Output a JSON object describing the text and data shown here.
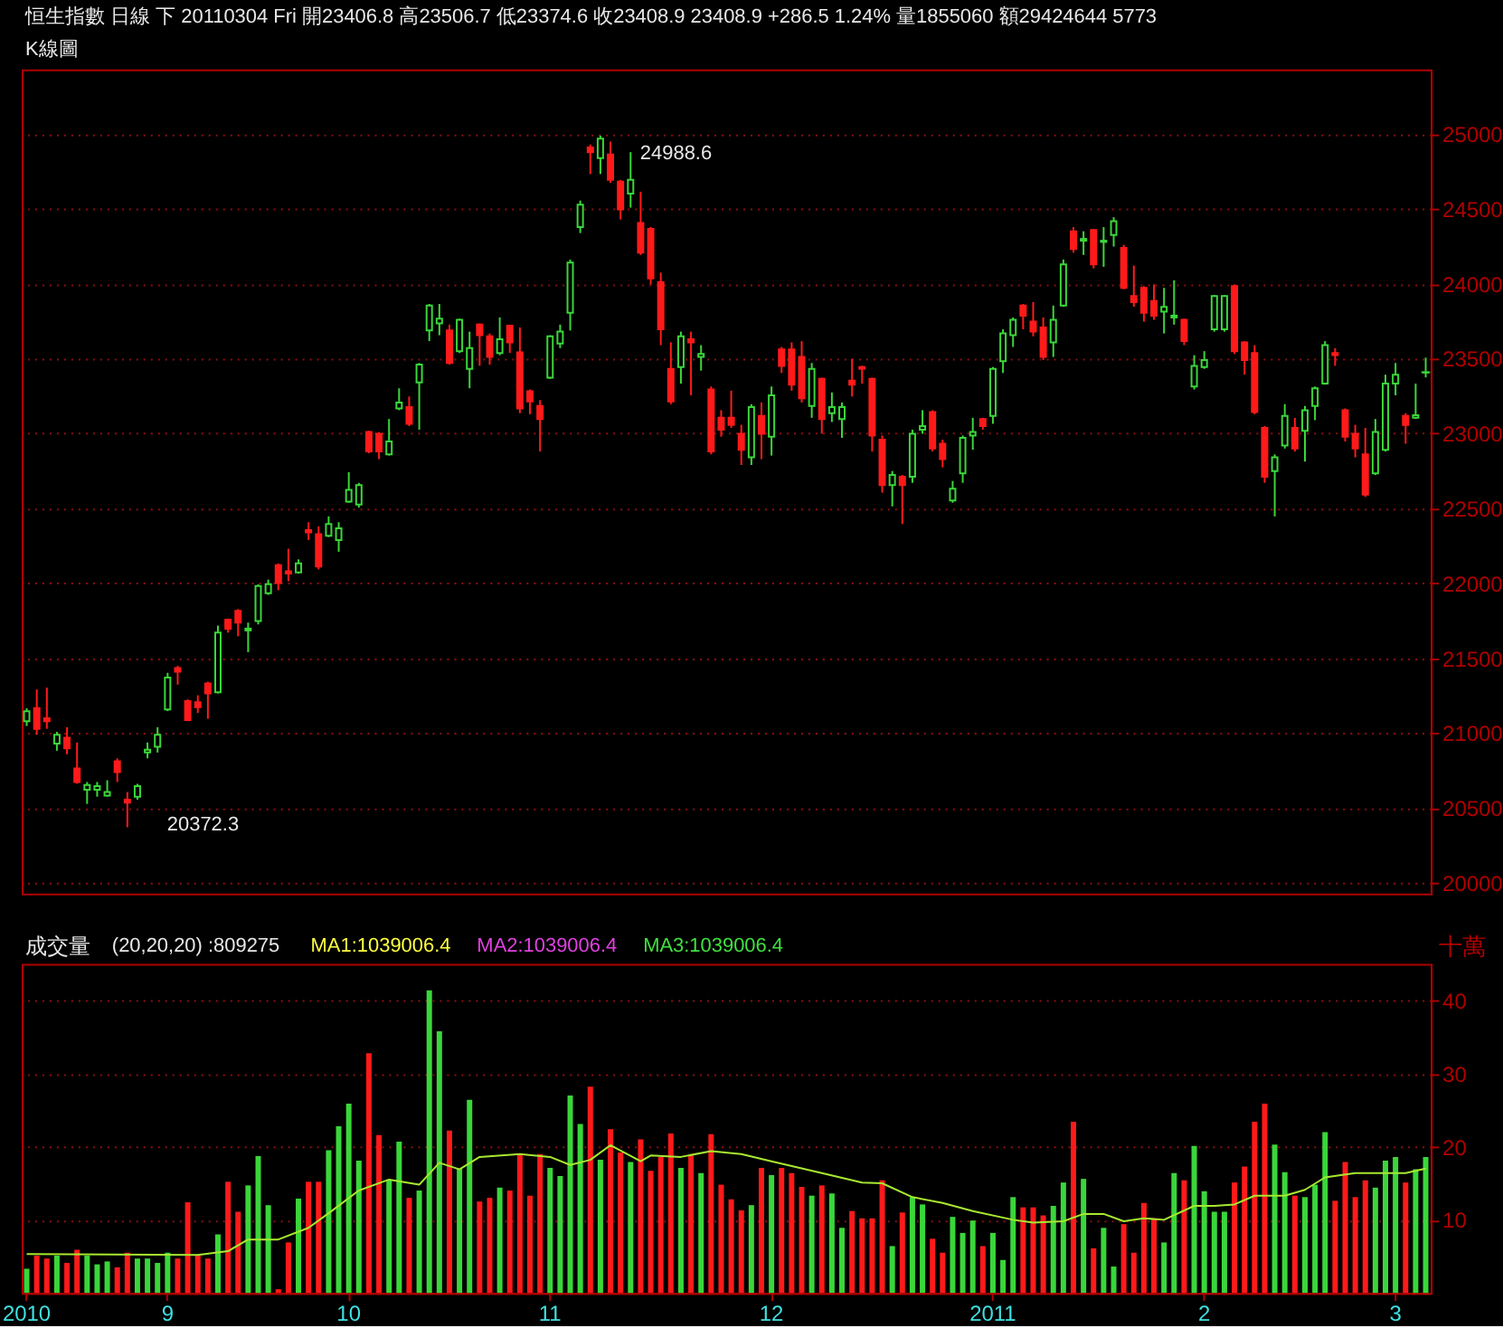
{
  "chart_data": [
    {
      "type": "candlestick",
      "title": "恒生指數 日線 下 20110304 Fri 開23406.8 高23506.7 低23374.6 收23408.9 23408.9 +286.5 1.24% 量1855060 額29424644 5773",
      "subtitle": "K線圖",
      "categories": [
        "2010",
        null,
        null,
        null,
        null,
        null,
        null,
        null,
        null,
        null,
        null,
        null,
        null,
        null,
        "9",
        null,
        null,
        null,
        null,
        null,
        null,
        null,
        null,
        null,
        null,
        null,
        null,
        null,
        null,
        null,
        null,
        null,
        "10",
        null,
        null,
        null,
        null,
        null,
        null,
        null,
        null,
        null,
        null,
        null,
        null,
        null,
        null,
        null,
        null,
        null,
        null,
        null,
        "11",
        null,
        null,
        null,
        null,
        null,
        null,
        null,
        null,
        null,
        null,
        null,
        null,
        null,
        null,
        null,
        null,
        null,
        null,
        null,
        null,
        null,
        "12",
        null,
        null,
        null,
        null,
        null,
        null,
        null,
        null,
        null,
        null,
        null,
        null,
        null,
        null,
        null,
        null,
        null,
        null,
        null,
        null,
        null,
        "2011",
        null,
        null,
        null,
        null,
        null,
        null,
        null,
        null,
        null,
        null,
        null,
        null,
        null,
        null,
        null,
        null,
        null,
        null,
        null,
        null,
        "2",
        null,
        null,
        null,
        null,
        null,
        null,
        null,
        null,
        null,
        null,
        null,
        null,
        null,
        null,
        null,
        null,
        null,
        null,
        "3",
        null,
        null,
        null
      ],
      "ohlc": [
        [
          21080,
          21167,
          21048,
          21147
        ],
        [
          21167,
          21292,
          20989,
          21029
        ],
        [
          21099,
          21304,
          21029,
          21080
        ],
        [
          20930,
          21009,
          20883,
          20989
        ],
        [
          20969,
          21040,
          20859,
          20898
        ],
        [
          20765,
          20938,
          20662,
          20674
        ],
        [
          20623,
          20674,
          20528,
          20654
        ],
        [
          20623,
          20674,
          20576,
          20646
        ],
        [
          20583,
          20686,
          20576,
          20607
        ],
        [
          20812,
          20832,
          20674,
          20741
        ],
        [
          20556,
          20607,
          20372.3,
          20536
        ],
        [
          20576,
          20662,
          20556,
          20646
        ],
        [
          20871,
          20938,
          20832,
          20890
        ],
        [
          20910,
          21040,
          20871,
          20989
        ],
        [
          21159,
          21403,
          21147,
          21371
        ],
        [
          21434,
          21450,
          21324,
          21411
        ],
        [
          21214,
          21226,
          21080,
          21088
        ],
        [
          21206,
          21253,
          21135,
          21174
        ],
        [
          21332,
          21344,
          21096,
          21265
        ],
        [
          21273,
          21718,
          21265,
          21671
        ],
        [
          21757,
          21765,
          21671,
          21698
        ],
        [
          21816,
          21828,
          21647,
          21738
        ],
        [
          21686,
          21738,
          21541,
          21698
        ],
        [
          21749,
          21994,
          21726,
          21982
        ],
        [
          21935,
          22025,
          21923,
          21994
        ],
        [
          22121,
          22133,
          21954,
          22002
        ],
        [
          22081,
          22231,
          22014,
          22065
        ],
        [
          22073,
          22160,
          22065,
          22133
        ],
        [
          22356,
          22408,
          22289,
          22341
        ],
        [
          22329,
          22380,
          22093,
          22112
        ],
        [
          22317,
          22447,
          22309,
          22396
        ],
        [
          22289,
          22408,
          22211,
          22368
        ],
        [
          22545,
          22742,
          22538,
          22624
        ],
        [
          22526,
          22671,
          22506,
          22656
        ],
        [
          23010,
          23018,
          22869,
          22880
        ],
        [
          22999,
          23010,
          22829,
          22880
        ],
        [
          22861,
          23097,
          22853,
          22947
        ],
        [
          23168,
          23302,
          23156,
          23207
        ],
        [
          23176,
          23247,
          23050,
          23065
        ],
        [
          23341,
          23471,
          23026,
          23460
        ],
        [
          23688,
          23865,
          23617,
          23854
        ],
        [
          23735,
          23865,
          23656,
          23767
        ],
        [
          23688,
          23727,
          23460,
          23471
        ],
        [
          23550,
          23767,
          23538,
          23759
        ],
        [
          23432,
          23680,
          23302,
          23570
        ],
        [
          23727,
          23735,
          23452,
          23656
        ],
        [
          23649,
          23668,
          23460,
          23511
        ],
        [
          23538,
          23775,
          23523,
          23629
        ],
        [
          23720,
          23727,
          23538,
          23609
        ],
        [
          23542,
          23708,
          23136,
          23168
        ],
        [
          23282,
          23294,
          23129,
          23215
        ],
        [
          23184,
          23223,
          22880,
          23097
        ],
        [
          23373,
          23656,
          23365,
          23649
        ],
        [
          23601,
          23727,
          23570,
          23680
        ],
        [
          23806,
          24161,
          23688,
          24141
        ],
        [
          24378,
          24555,
          24338,
          24527
        ],
        [
          24909,
          24929,
          24732,
          24878
        ],
        [
          24839,
          24988.6,
          24732,
          24969
        ],
        [
          24862,
          24949,
          24673,
          24693
        ],
        [
          24681,
          24693,
          24429,
          24496
        ],
        [
          24602,
          24878,
          24508,
          24693
        ],
        [
          24405,
          24614,
          24192,
          24208
        ],
        [
          24366,
          24378,
          23995,
          24035
        ],
        [
          24011,
          24074,
          23590,
          23696
        ],
        [
          23432,
          23609,
          23196,
          23215
        ],
        [
          23444,
          23680,
          23333,
          23649
        ],
        [
          23629,
          23680,
          23255,
          23609
        ],
        [
          23511,
          23590,
          23420,
          23531
        ],
        [
          23294,
          23314,
          22861,
          22880
        ],
        [
          23105,
          23156,
          22979,
          23026
        ],
        [
          23105,
          23286,
          23038,
          23058
        ],
        [
          22999,
          23058,
          22790,
          22892
        ],
        [
          22841,
          23196,
          22790,
          23176
        ],
        [
          23117,
          23207,
          22829,
          22999
        ],
        [
          22979,
          23314,
          22853,
          23255
        ],
        [
          23562,
          23578,
          23404,
          23452
        ],
        [
          23562,
          23609,
          23286,
          23326
        ],
        [
          23511,
          23617,
          23207,
          23235
        ],
        [
          23184,
          23471,
          23105,
          23432
        ],
        [
          23365,
          23373,
          22999,
          23097
        ],
        [
          23136,
          23274,
          23077,
          23176
        ],
        [
          23097,
          23207,
          22971,
          23176
        ],
        [
          23353,
          23499,
          23247,
          23326
        ],
        [
          23444,
          23452,
          23333,
          23432
        ],
        [
          23365,
          23373,
          22880,
          22987
        ],
        [
          22959,
          22987,
          22605,
          22656
        ],
        [
          22656,
          22750,
          22514,
          22723
        ],
        [
          22711,
          22723,
          22396,
          22656
        ],
        [
          22711,
          23026,
          22671,
          22999
        ],
        [
          23026,
          23156,
          22999,
          23050
        ],
        [
          23144,
          23156,
          22880,
          22900
        ],
        [
          22932,
          22959,
          22774,
          22829
        ],
        [
          22553,
          22683,
          22538,
          22632
        ],
        [
          22735,
          22987,
          22671,
          22971
        ],
        [
          22987,
          23105,
          22892,
          23010
        ],
        [
          23097,
          23105,
          23026,
          23050
        ],
        [
          23117,
          23444,
          23065,
          23432
        ],
        [
          23483,
          23696,
          23404,
          23668
        ],
        [
          23656,
          23775,
          23578,
          23759
        ],
        [
          23854,
          23865,
          23696,
          23787
        ],
        [
          23747,
          23877,
          23649,
          23680
        ],
        [
          23708,
          23775,
          23491,
          23511
        ],
        [
          23609,
          23854,
          23511,
          23759
        ],
        [
          23854,
          24161,
          23846,
          24129
        ],
        [
          24350,
          24378,
          24208,
          24232
        ],
        [
          24287,
          24350,
          24192,
          24299
        ],
        [
          24358,
          24366,
          24102,
          24129
        ],
        [
          24279,
          24378,
          24113,
          24287
        ],
        [
          24326,
          24444,
          24248,
          24417
        ],
        [
          24240,
          24259,
          23964,
          23972
        ],
        [
          23917,
          24121,
          23846,
          23877
        ],
        [
          23972,
          23984,
          23747,
          23806
        ],
        [
          23885,
          23995,
          23759,
          23787
        ],
        [
          23814,
          23972,
          23668,
          23846
        ],
        [
          23775,
          24023,
          23727,
          23787
        ],
        [
          23759,
          23767,
          23590,
          23617
        ],
        [
          23314,
          23523,
          23294,
          23452
        ],
        [
          23444,
          23550,
          23432,
          23491
        ],
        [
          23696,
          23924,
          23680,
          23917
        ],
        [
          23696,
          23924,
          23680,
          23917
        ],
        [
          23984,
          23995,
          23531,
          23550
        ],
        [
          23609,
          23617,
          23393,
          23491
        ],
        [
          23538,
          23590,
          23129,
          23144
        ],
        [
          23038,
          23050,
          22671,
          22711
        ],
        [
          22750,
          22861,
          22447,
          22841
        ],
        [
          22920,
          23196,
          22900,
          23117
        ],
        [
          23038,
          23105,
          22880,
          22900
        ],
        [
          23018,
          23184,
          22813,
          23156
        ],
        [
          23184,
          23314,
          23089,
          23302
        ],
        [
          23333,
          23617,
          23326,
          23590
        ],
        [
          23538,
          23570,
          23452,
          23523
        ],
        [
          23156,
          23168,
          22947,
          22979
        ],
        [
          22999,
          23058,
          22841,
          22900
        ],
        [
          22861,
          23038,
          22577,
          22593
        ],
        [
          22735,
          23097,
          22723,
          23010
        ],
        [
          22892,
          23393,
          22880,
          23333
        ],
        [
          23333,
          23471,
          23255,
          23393
        ],
        [
          23117,
          23136,
          22932,
          23058
        ],
        [
          23105,
          23333,
          23097,
          23122.4
        ],
        [
          23406.8,
          23506.7,
          23374.6,
          23408.9
        ]
      ],
      "colors": [
        "#3ad63a",
        "#ff1a1a",
        "#ff1a1a",
        "#3ad63a",
        "#ff1a1a",
        "#ff1a1a",
        "#3ad63a",
        "#3ad63a",
        "#3ad63a",
        "#ff1a1a",
        "#ff1a1a",
        "#3ad63a",
        "#3ad63a",
        "#3ad63a",
        "#3ad63a",
        "#ff1a1a",
        "#ff1a1a",
        "#ff1a1a",
        "#ff1a1a",
        "#3ad63a",
        "#ff1a1a",
        "#ff1a1a",
        "#3ad63a",
        "#3ad63a",
        "#3ad63a",
        "#ff1a1a",
        "#ff1a1a",
        "#3ad63a",
        "#ff1a1a",
        "#ff1a1a",
        "#3ad63a",
        "#3ad63a",
        "#3ad63a",
        "#3ad63a",
        "#ff1a1a",
        "#ff1a1a",
        "#3ad63a",
        "#3ad63a",
        "#ff1a1a",
        "#3ad63a",
        "#3ad63a",
        "#3ad63a",
        "#ff1a1a",
        "#3ad63a",
        "#3ad63a",
        "#ff1a1a",
        "#ff1a1a",
        "#3ad63a",
        "#ff1a1a",
        "#ff1a1a",
        "#ff1a1a",
        "#ff1a1a",
        "#3ad63a",
        "#3ad63a",
        "#3ad63a",
        "#3ad63a",
        "#ff1a1a",
        "#3ad63a",
        "#ff1a1a",
        "#ff1a1a",
        "#3ad63a",
        "#ff1a1a",
        "#ff1a1a",
        "#ff1a1a",
        "#ff1a1a",
        "#3ad63a",
        "#ff1a1a",
        "#3ad63a",
        "#ff1a1a",
        "#ff1a1a",
        "#ff1a1a",
        "#ff1a1a",
        "#3ad63a",
        "#ff1a1a",
        "#3ad63a",
        "#ff1a1a",
        "#ff1a1a",
        "#ff1a1a",
        "#3ad63a",
        "#ff1a1a",
        "#3ad63a",
        "#3ad63a",
        "#ff1a1a",
        "#ff1a1a",
        "#ff1a1a",
        "#ff1a1a",
        "#3ad63a",
        "#ff1a1a",
        "#3ad63a",
        "#3ad63a",
        "#ff1a1a",
        "#ff1a1a",
        "#3ad63a",
        "#3ad63a",
        "#3ad63a",
        "#ff1a1a",
        "#3ad63a",
        "#3ad63a",
        "#3ad63a",
        "#ff1a1a",
        "#ff1a1a",
        "#ff1a1a",
        "#3ad63a",
        "#3ad63a",
        "#ff1a1a",
        "#3ad63a",
        "#ff1a1a",
        "#3ad63a",
        "#3ad63a",
        "#ff1a1a",
        "#ff1a1a",
        "#ff1a1a",
        "#ff1a1a",
        "#3ad63a",
        "#3ad63a",
        "#ff1a1a",
        "#3ad63a",
        "#3ad63a",
        "#3ad63a",
        "#3ad63a",
        "#ff1a1a",
        "#ff1a1a",
        "#ff1a1a",
        "#ff1a1a",
        "#3ad63a",
        "#3ad63a",
        "#ff1a1a",
        "#3ad63a",
        "#3ad63a",
        "#3ad63a",
        "#ff1a1a",
        "#ff1a1a",
        "#ff1a1a",
        "#ff1a1a",
        "#3ad63a",
        "#3ad63a",
        "#3ad63a",
        "#ff1a1a",
        "#3ad63a",
        "#3ad63a"
      ],
      "ylim": [
        19930,
        25430
      ],
      "yticks": [
        20000,
        20500,
        21000,
        21500,
        22000,
        22500,
        23000,
        23500,
        24000,
        24500,
        25000
      ],
      "grid": "y",
      "tick_labels": "y",
      "annotations": [
        "24988.6",
        "20372.3"
      ]
    },
    {
      "type": "bar",
      "title": "成交量",
      "subtitle": "(20,20,20) :809275",
      "ylabel": "十萬",
      "categories": [
        "2010",
        null,
        null,
        null,
        null,
        null,
        null,
        null,
        null,
        null,
        null,
        null,
        null,
        null,
        "9",
        null,
        null,
        null,
        null,
        null,
        null,
        null,
        null,
        null,
        null,
        null,
        null,
        null,
        null,
        null,
        null,
        null,
        "10",
        null,
        null,
        null,
        null,
        null,
        null,
        null,
        null,
        null,
        null,
        null,
        null,
        null,
        null,
        null,
        null,
        null,
        null,
        null,
        "11",
        null,
        null,
        null,
        null,
        null,
        null,
        null,
        null,
        null,
        null,
        null,
        null,
        null,
        null,
        null,
        null,
        null,
        null,
        null,
        null,
        null,
        "12",
        null,
        null,
        null,
        null,
        null,
        null,
        null,
        null,
        null,
        null,
        null,
        null,
        null,
        null,
        null,
        null,
        null,
        null,
        null,
        null,
        null,
        "2011",
        null,
        null,
        null,
        null,
        null,
        null,
        null,
        null,
        null,
        null,
        null,
        null,
        null,
        null,
        null,
        null,
        null,
        null,
        null,
        null,
        "2",
        null,
        null,
        null,
        null,
        null,
        null,
        null,
        null,
        null,
        null,
        null,
        null,
        null,
        null,
        null,
        null,
        null,
        null,
        "3",
        null,
        null,
        null
      ],
      "series": [
        {
          "type": "bar",
          "values": [
            3.3,
            5.1,
            4.7,
            5.1,
            4.1,
            5.9,
            5.1,
            3.9,
            4.3,
            3.5,
            5.5,
            4.7,
            4.7,
            4.1,
            5.5,
            4.7,
            12.4,
            5.1,
            4.7,
            8.0,
            15.2,
            11.1,
            14.7,
            18.7,
            12.0,
            0.5,
            6.9,
            12.9,
            15.2,
            15.2,
            19.5,
            22.8,
            25.9,
            18.1,
            32.8,
            21.6,
            15.5,
            20.7,
            13.0,
            14.0,
            41.4,
            35.8,
            22.2,
            17.0,
            26.4,
            12.5,
            13.0,
            14.4,
            14.0,
            19.0,
            13.3,
            19.0,
            17.1,
            16.0,
            27.0,
            23.1,
            28.2,
            18.2,
            22.4,
            19.2,
            17.9,
            21.0,
            16.7,
            18.6,
            21.8,
            17.1,
            18.8,
            16.4,
            21.7,
            14.8,
            12.8,
            11.3,
            12.0,
            17.1,
            16.1,
            17.1,
            16.4,
            14.5,
            13.3,
            14.7,
            13.6,
            8.9,
            11.2,
            10.2,
            10.2,
            15.4,
            6.4,
            11.0,
            13.1,
            12.1,
            7.4,
            5.5,
            10.4,
            8.2,
            9.9,
            6.4,
            8.2,
            4.5,
            13.1,
            11.7,
            11.7,
            10.6,
            11.9,
            15.1,
            23.4,
            15.6,
            6.1,
            8.9,
            3.6,
            9.4,
            5.5,
            12.3,
            10.2,
            6.9,
            16.4,
            15.4,
            20.1,
            13.9,
            11.1,
            11.1,
            15.1,
            17.3,
            23.4,
            25.9,
            20.3,
            16.5,
            13.3,
            13.1,
            14.8,
            22.0,
            12.6,
            17.9,
            13.1,
            15.4,
            14.4,
            18.1,
            18.6,
            15.1,
            16.9,
            18.6
          ],
          "colors": [
            "#3ad63a",
            "#ff1a1a",
            "#ff1a1a",
            "#3ad63a",
            "#ff1a1a",
            "#ff1a1a",
            "#3ad63a",
            "#3ad63a",
            "#3ad63a",
            "#ff1a1a",
            "#ff1a1a",
            "#3ad63a",
            "#3ad63a",
            "#3ad63a",
            "#3ad63a",
            "#ff1a1a",
            "#ff1a1a",
            "#ff1a1a",
            "#ff1a1a",
            "#3ad63a",
            "#ff1a1a",
            "#ff1a1a",
            "#3ad63a",
            "#3ad63a",
            "#3ad63a",
            "#ff1a1a",
            "#ff1a1a",
            "#3ad63a",
            "#ff1a1a",
            "#ff1a1a",
            "#3ad63a",
            "#3ad63a",
            "#3ad63a",
            "#3ad63a",
            "#ff1a1a",
            "#ff1a1a",
            "#3ad63a",
            "#3ad63a",
            "#ff1a1a",
            "#3ad63a",
            "#3ad63a",
            "#3ad63a",
            "#ff1a1a",
            "#3ad63a",
            "#3ad63a",
            "#ff1a1a",
            "#ff1a1a",
            "#3ad63a",
            "#ff1a1a",
            "#ff1a1a",
            "#ff1a1a",
            "#ff1a1a",
            "#3ad63a",
            "#3ad63a",
            "#3ad63a",
            "#3ad63a",
            "#ff1a1a",
            "#3ad63a",
            "#ff1a1a",
            "#ff1a1a",
            "#3ad63a",
            "#ff1a1a",
            "#ff1a1a",
            "#ff1a1a",
            "#ff1a1a",
            "#3ad63a",
            "#ff1a1a",
            "#3ad63a",
            "#ff1a1a",
            "#ff1a1a",
            "#ff1a1a",
            "#ff1a1a",
            "#3ad63a",
            "#ff1a1a",
            "#3ad63a",
            "#ff1a1a",
            "#ff1a1a",
            "#ff1a1a",
            "#3ad63a",
            "#ff1a1a",
            "#3ad63a",
            "#3ad63a",
            "#ff1a1a",
            "#ff1a1a",
            "#ff1a1a",
            "#ff1a1a",
            "#3ad63a",
            "#ff1a1a",
            "#3ad63a",
            "#3ad63a",
            "#ff1a1a",
            "#ff1a1a",
            "#3ad63a",
            "#3ad63a",
            "#3ad63a",
            "#ff1a1a",
            "#3ad63a",
            "#3ad63a",
            "#3ad63a",
            "#ff1a1a",
            "#ff1a1a",
            "#ff1a1a",
            "#3ad63a",
            "#3ad63a",
            "#ff1a1a",
            "#3ad63a",
            "#ff1a1a",
            "#3ad63a",
            "#3ad63a",
            "#ff1a1a",
            "#ff1a1a",
            "#ff1a1a",
            "#ff1a1a",
            "#3ad63a",
            "#3ad63a",
            "#ff1a1a",
            "#3ad63a",
            "#3ad63a",
            "#3ad63a",
            "#3ad63a",
            "#ff1a1a",
            "#ff1a1a",
            "#ff1a1a",
            "#ff1a1a",
            "#3ad63a",
            "#3ad63a",
            "#ff1a1a",
            "#3ad63a",
            "#3ad63a",
            "#3ad63a",
            "#ff1a1a",
            "#ff1a1a",
            "#ff1a1a",
            "#ff1a1a",
            "#3ad63a",
            "#3ad63a",
            "#3ad63a",
            "#ff1a1a",
            "#3ad63a",
            "#3ad63a"
          ]
        },
        {
          "type": "line",
          "color": "#a8e830",
          "values": [
            5.3,
            null,
            null,
            null,
            null,
            null,
            null,
            null,
            null,
            null,
            null,
            null,
            null,
            null,
            null,
            null,
            null,
            5.2,
            null,
            null,
            5.7,
            null,
            7.3,
            null,
            null,
            7.3,
            null,
            null,
            8.9,
            null,
            10.9,
            null,
            null,
            14.0,
            null,
            null,
            15.5,
            null,
            null,
            14.8,
            null,
            17.8,
            null,
            16.9,
            null,
            18.6,
            null,
            null,
            null,
            19.0,
            null,
            null,
            18.6,
            null,
            17.5,
            null,
            18.2,
            null,
            20.2,
            null,
            null,
            18.0,
            18.8,
            null,
            null,
            18.6,
            null,
            null,
            19.4,
            null,
            null,
            19.0,
            null,
            null,
            18.0,
            null,
            null,
            null,
            null,
            16.4,
            null,
            null,
            null,
            15.1,
            null,
            15.0,
            null,
            null,
            13.1,
            null,
            null,
            12.3,
            null,
            null,
            11.2,
            null,
            null,
            null,
            10.0,
            null,
            9.6,
            null,
            null,
            9.8,
            null,
            10.8,
            null,
            10.8,
            null,
            9.8,
            null,
            10.2,
            null,
            10.0,
            null,
            null,
            11.9,
            null,
            11.9,
            null,
            12.1,
            null,
            13.3,
            null,
            null,
            13.3,
            null,
            14.1,
            null,
            15.8,
            null,
            null,
            16.4,
            null,
            null,
            null,
            null,
            16.4,
            null,
            17.0
          ]
        }
      ],
      "ylim": [
        0,
        45
      ],
      "yticks": [
        10,
        20,
        30,
        40
      ],
      "grid": "y",
      "annotations": [
        "MA1:1039006.4",
        "MA2:1039006.4",
        "MA3:1039006.4"
      ]
    }
  ]
}
